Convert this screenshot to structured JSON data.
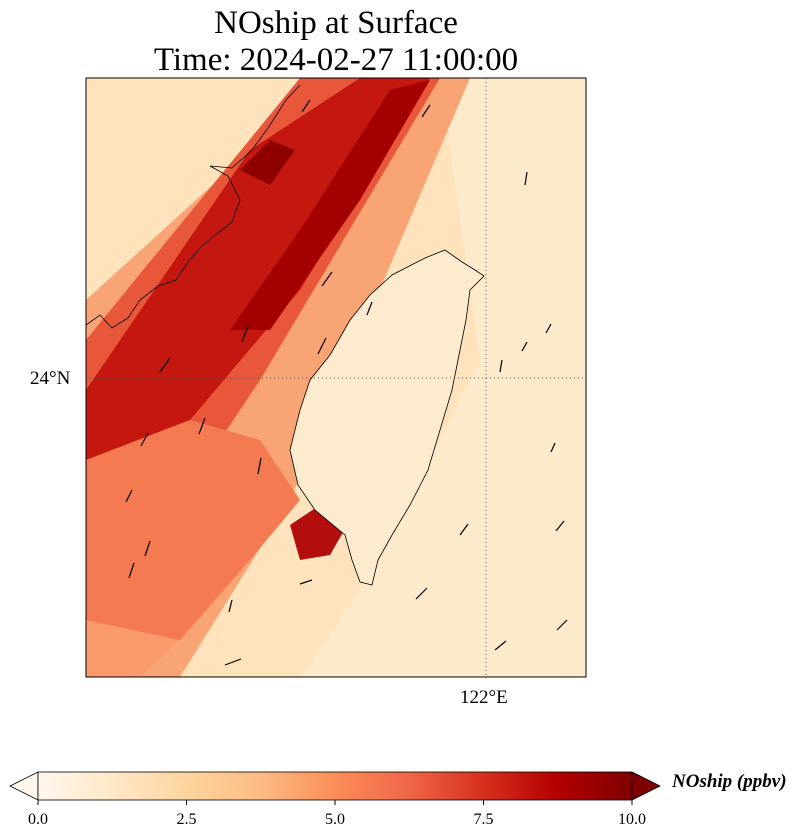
{
  "title": {
    "line1": "NOship at Surface",
    "line2": "Time: 2024-02-27 11:00:00"
  },
  "map": {
    "projection": "PlateCarree",
    "gridlines": "dotted",
    "lat_labels": [
      "24°N"
    ],
    "lon_labels": [
      "122°E"
    ],
    "features": [
      "coastline",
      "wind-vectors"
    ]
  },
  "colorbar": {
    "label": "NOship (ppbv)",
    "colormap": "OrRd",
    "extend": "both",
    "ticks": [
      "0.0",
      "2.5",
      "5.0",
      "7.5",
      "10.0"
    ],
    "range": [
      0,
      10
    ],
    "colors": [
      "#fff7ec",
      "#fee8c8",
      "#fdd49e",
      "#fdbb84",
      "#fc8d59",
      "#ef6548",
      "#d7301f",
      "#b30000",
      "#7f0000"
    ]
  }
}
